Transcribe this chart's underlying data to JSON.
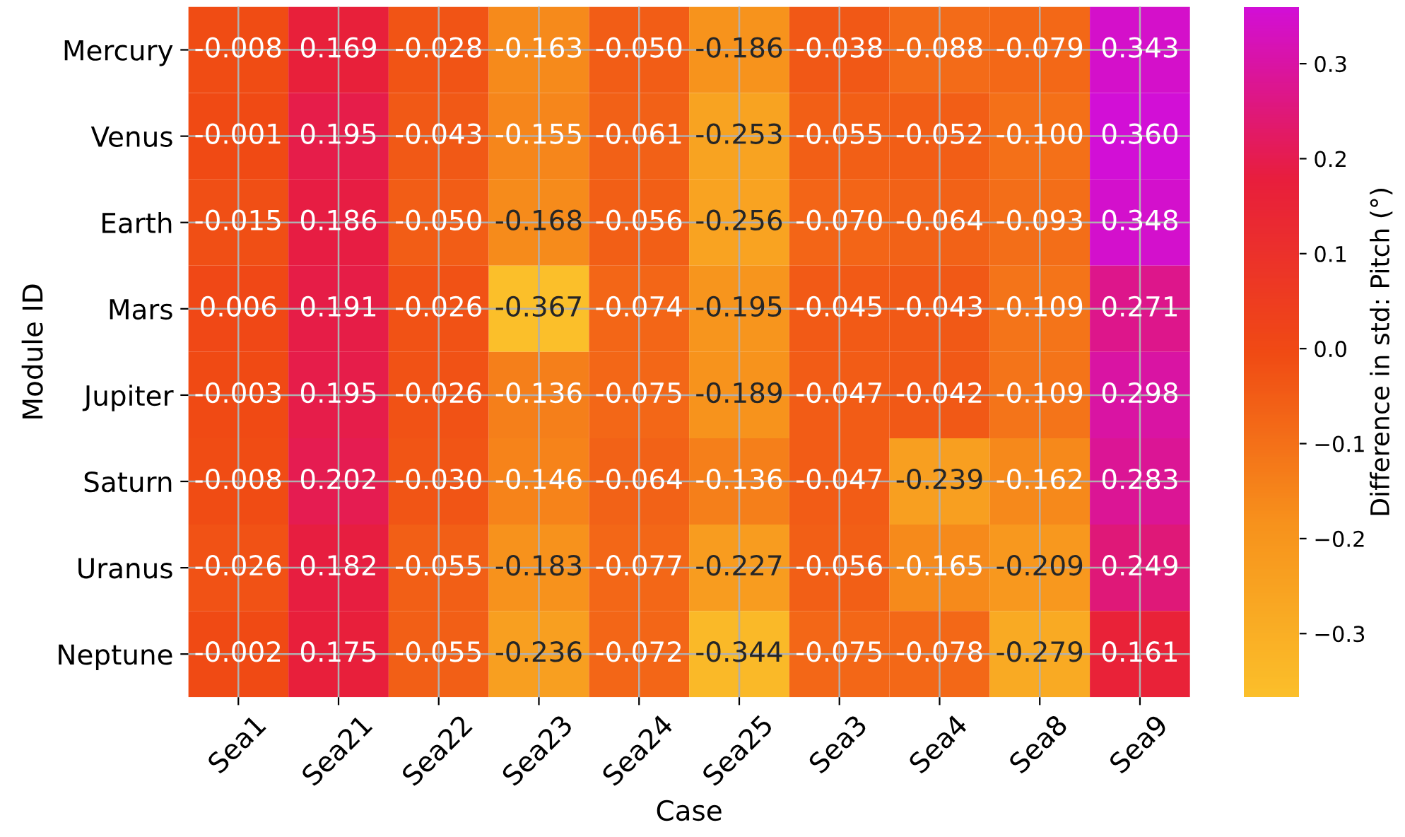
{
  "chart_data": {
    "type": "heatmap",
    "xlabel": "Case",
    "ylabel": "Module ID",
    "clabel": "Difference in std: Pitch (°)",
    "categories": [
      "Sea1",
      "Sea21",
      "Sea22",
      "Sea23",
      "Sea24",
      "Sea25",
      "Sea3",
      "Sea4",
      "Sea8",
      "Sea9"
    ],
    "y_categories": [
      "Mercury",
      "Venus",
      "Earth",
      "Mars",
      "Jupiter",
      "Saturn",
      "Uranus",
      "Neptune"
    ],
    "cells": [
      [
        -0.008,
        0.169,
        -0.028,
        -0.163,
        -0.05,
        -0.186,
        -0.038,
        -0.088,
        -0.079,
        0.343
      ],
      [
        -0.001,
        0.195,
        -0.043,
        -0.155,
        -0.061,
        -0.253,
        -0.055,
        -0.052,
        -0.1,
        0.36
      ],
      [
        -0.015,
        0.186,
        -0.05,
        -0.168,
        -0.056,
        -0.256,
        -0.07,
        -0.064,
        -0.093,
        0.348
      ],
      [
        0.006,
        0.191,
        -0.026,
        -0.367,
        -0.074,
        -0.195,
        -0.045,
        -0.043,
        -0.109,
        0.271
      ],
      [
        -0.003,
        0.195,
        -0.026,
        -0.136,
        -0.075,
        -0.189,
        -0.047,
        -0.042,
        -0.109,
        0.298
      ],
      [
        -0.008,
        0.202,
        -0.03,
        -0.146,
        -0.064,
        -0.136,
        -0.047,
        -0.239,
        -0.162,
        0.283
      ],
      [
        -0.026,
        0.182,
        -0.055,
        -0.183,
        -0.077,
        -0.227,
        -0.056,
        -0.165,
        -0.209,
        0.249
      ],
      [
        -0.002,
        0.175,
        -0.055,
        -0.236,
        -0.072,
        -0.344,
        -0.075,
        -0.078,
        -0.279,
        0.161
      ]
    ],
    "cell_labels": [
      [
        "-0.008",
        "0.169",
        "-0.028",
        "-0.163",
        "-0.050",
        "-0.186",
        "-0.038",
        "-0.088",
        "-0.079",
        "0.343"
      ],
      [
        "-0.001",
        "0.195",
        "-0.043",
        "-0.155",
        "-0.061",
        "-0.253",
        "-0.055",
        "-0.052",
        "-0.100",
        "0.360"
      ],
      [
        "-0.015",
        "0.186",
        "-0.050",
        "-0.168",
        "-0.056",
        "-0.256",
        "-0.070",
        "-0.064",
        "-0.093",
        "0.348"
      ],
      [
        "0.006",
        "0.191",
        "-0.026",
        "-0.367",
        "-0.074",
        "-0.195",
        "-0.045",
        "-0.043",
        "-0.109",
        "0.271"
      ],
      [
        "-0.003",
        "0.195",
        "-0.026",
        "-0.136",
        "-0.075",
        "-0.189",
        "-0.047",
        "-0.042",
        "-0.109",
        "0.298"
      ],
      [
        "-0.008",
        "0.202",
        "-0.030",
        "-0.146",
        "-0.064",
        "-0.136",
        "-0.047",
        "-0.239",
        "-0.162",
        "0.283"
      ],
      [
        "-0.026",
        "0.182",
        "-0.055",
        "-0.183",
        "-0.077",
        "-0.227",
        "-0.056",
        "-0.165",
        "-0.209",
        "0.249"
      ],
      [
        "-0.002",
        "0.175",
        "-0.055",
        "-0.236",
        "-0.072",
        "-0.344",
        "-0.075",
        "-0.078",
        "-0.279",
        "0.161"
      ]
    ],
    "clim": [
      -0.367,
      0.36
    ],
    "cticks": [
      {
        "value": -0.3,
        "label": "−0.3"
      },
      {
        "value": -0.2,
        "label": "−0.2"
      },
      {
        "value": -0.1,
        "label": "−0.1"
      },
      {
        "value": 0.0,
        "label": "0.0"
      },
      {
        "value": 0.1,
        "label": "0.1"
      },
      {
        "value": 0.2,
        "label": "0.2"
      },
      {
        "value": 0.3,
        "label": "0.3"
      }
    ],
    "data_labels": true,
    "grid": true
  }
}
